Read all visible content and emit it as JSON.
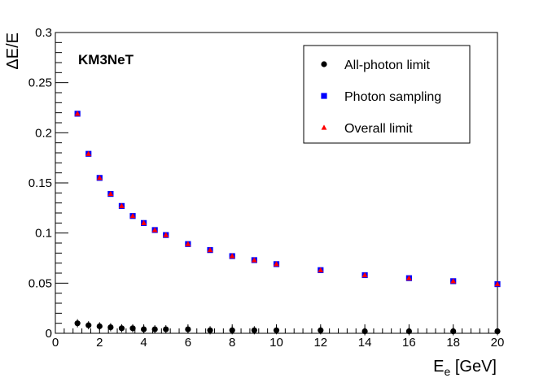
{
  "chart_data": {
    "type": "scatter",
    "title": "",
    "annotation": "KM3NeT",
    "xlabel": {
      "main": "E",
      "sub": "e",
      "unit": " [GeV]"
    },
    "ylabel": "ΔE/E",
    "xlim": [
      0,
      20
    ],
    "ylim": [
      0,
      0.3
    ],
    "x_ticks": [
      "0",
      "2",
      "4",
      "6",
      "8",
      "10",
      "12",
      "14",
      "16",
      "18",
      "20"
    ],
    "y_ticks": [
      "0",
      "0.05",
      "0.1",
      "0.15",
      "0.2",
      "0.25",
      "0.3"
    ],
    "legend_position": "top-right",
    "series": [
      {
        "name": "All-photon limit",
        "marker": "circle",
        "color": "#000000",
        "x": [
          1,
          1.5,
          2,
          2.5,
          3,
          3.5,
          4,
          4.5,
          5,
          6,
          7,
          8,
          9,
          10,
          12,
          14,
          16,
          18,
          20
        ],
        "y": [
          0.01,
          0.008,
          0.007,
          0.006,
          0.005,
          0.005,
          0.004,
          0.004,
          0.004,
          0.004,
          0.003,
          0.003,
          0.003,
          0.003,
          0.003,
          0.002,
          0.002,
          0.002,
          0.002
        ]
      },
      {
        "name": "Photon sampling",
        "marker": "square",
        "color": "#0000ff",
        "x": [
          1,
          1.5,
          2,
          2.5,
          3,
          3.5,
          4,
          4.5,
          5,
          6,
          7,
          8,
          9,
          10,
          12,
          14,
          16,
          18,
          20
        ],
        "y": [
          0.219,
          0.179,
          0.155,
          0.139,
          0.127,
          0.117,
          0.11,
          0.103,
          0.098,
          0.089,
          0.083,
          0.077,
          0.073,
          0.069,
          0.063,
          0.058,
          0.055,
          0.052,
          0.049
        ]
      },
      {
        "name": "Overall limit",
        "marker": "triangle",
        "color": "#ff0000",
        "x": [
          1,
          1.5,
          2,
          2.5,
          3,
          3.5,
          4,
          4.5,
          5,
          6,
          7,
          8,
          9,
          10,
          12,
          14,
          16,
          18,
          20
        ],
        "y": [
          0.219,
          0.179,
          0.155,
          0.139,
          0.127,
          0.117,
          0.11,
          0.103,
          0.098,
          0.089,
          0.083,
          0.077,
          0.073,
          0.069,
          0.063,
          0.058,
          0.055,
          0.052,
          0.049
        ]
      }
    ]
  }
}
